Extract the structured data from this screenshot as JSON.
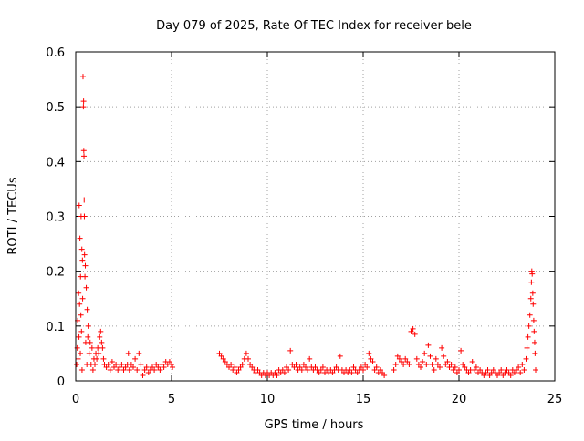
{
  "chart_data": {
    "type": "scatter",
    "title": "Day 079 of 2025, Rate Of TEC Index for receiver bele",
    "xlabel": "GPS time / hours",
    "ylabel": "ROTI / TECUs",
    "xlim": [
      0,
      25
    ],
    "ylim": [
      0,
      0.6
    ],
    "xticks": [
      0,
      5,
      10,
      15,
      20,
      25
    ],
    "xtick_labels": [
      "0",
      "5",
      "10",
      "15",
      "20",
      "25"
    ],
    "yticks": [
      0,
      0.1,
      0.2,
      0.3,
      0.4,
      0.5,
      0.6
    ],
    "ytick_labels": [
      "0",
      "0.1",
      "0.2",
      "0.3",
      "0.4",
      "0.5",
      "0.6"
    ],
    "grid": true,
    "marker": "plus",
    "series": [
      {
        "name": "ROTI",
        "color": "#ff0000",
        "points": [
          [
            0.05,
            0.03
          ],
          [
            0.08,
            0.06
          ],
          [
            0.1,
            0.11
          ],
          [
            0.12,
            0.04
          ],
          [
            0.15,
            0.16
          ],
          [
            0.17,
            0.08
          ],
          [
            0.18,
            0.32
          ],
          [
            0.2,
            0.14
          ],
          [
            0.22,
            0.26
          ],
          [
            0.24,
            0.05
          ],
          [
            0.25,
            0.19
          ],
          [
            0.27,
            0.12
          ],
          [
            0.28,
            0.3
          ],
          [
            0.3,
            0.09
          ],
          [
            0.32,
            0.24
          ],
          [
            0.33,
            0.02
          ],
          [
            0.35,
            0.22
          ],
          [
            0.36,
            0.15
          ],
          [
            0.38,
            0.555
          ],
          [
            0.4,
            0.5
          ],
          [
            0.41,
            0.51
          ],
          [
            0.42,
            0.42
          ],
          [
            0.43,
            0.41
          ],
          [
            0.44,
            0.33
          ],
          [
            0.45,
            0.3
          ],
          [
            0.46,
            0.23
          ],
          [
            0.48,
            0.19
          ],
          [
            0.5,
            0.21
          ],
          [
            0.52,
            0.07
          ],
          [
            0.55,
            0.17
          ],
          [
            0.58,
            0.03
          ],
          [
            0.6,
            0.13
          ],
          [
            0.63,
            0.08
          ],
          [
            0.65,
            0.1
          ],
          [
            0.7,
            0.05
          ],
          [
            0.75,
            0.07
          ],
          [
            0.8,
            0.03
          ],
          [
            0.85,
            0.06
          ],
          [
            0.9,
            0.02
          ],
          [
            0.95,
            0.04
          ],
          [
            1.0,
            0.03
          ],
          [
            1.05,
            0.05
          ],
          [
            1.1,
            0.04
          ],
          [
            1.15,
            0.06
          ],
          [
            1.2,
            0.05
          ],
          [
            1.25,
            0.08
          ],
          [
            1.3,
            0.09
          ],
          [
            1.35,
            0.07
          ],
          [
            1.4,
            0.06
          ],
          [
            1.45,
            0.04
          ],
          [
            1.5,
            0.03
          ],
          [
            1.6,
            0.025
          ],
          [
            1.7,
            0.03
          ],
          [
            1.8,
            0.02
          ],
          [
            1.9,
            0.035
          ],
          [
            2.0,
            0.025
          ],
          [
            2.1,
            0.03
          ],
          [
            2.2,
            0.02
          ],
          [
            2.3,
            0.025
          ],
          [
            2.4,
            0.03
          ],
          [
            2.5,
            0.02
          ],
          [
            2.6,
            0.025
          ],
          [
            2.7,
            0.03
          ],
          [
            2.75,
            0.05
          ],
          [
            2.8,
            0.02
          ],
          [
            2.9,
            0.03
          ],
          [
            3.0,
            0.025
          ],
          [
            3.1,
            0.04
          ],
          [
            3.2,
            0.02
          ],
          [
            3.3,
            0.05
          ],
          [
            3.4,
            0.03
          ],
          [
            3.5,
            0.01
          ],
          [
            3.6,
            0.02
          ],
          [
            3.7,
            0.025
          ],
          [
            3.8,
            0.015
          ],
          [
            3.9,
            0.02
          ],
          [
            4.0,
            0.025
          ],
          [
            4.1,
            0.02
          ],
          [
            4.2,
            0.03
          ],
          [
            4.3,
            0.025
          ],
          [
            4.4,
            0.02
          ],
          [
            4.5,
            0.03
          ],
          [
            4.6,
            0.025
          ],
          [
            4.7,
            0.035
          ],
          [
            4.8,
            0.03
          ],
          [
            4.9,
            0.035
          ],
          [
            5.0,
            0.03
          ],
          [
            5.05,
            0.025
          ],
          [
            7.5,
            0.05
          ],
          [
            7.6,
            0.045
          ],
          [
            7.7,
            0.04
          ],
          [
            7.8,
            0.035
          ],
          [
            7.9,
            0.03
          ],
          [
            8.0,
            0.025
          ],
          [
            8.1,
            0.03
          ],
          [
            8.2,
            0.02
          ],
          [
            8.3,
            0.025
          ],
          [
            8.4,
            0.015
          ],
          [
            8.5,
            0.02
          ],
          [
            8.6,
            0.025
          ],
          [
            8.7,
            0.03
          ],
          [
            8.8,
            0.04
          ],
          [
            8.9,
            0.05
          ],
          [
            9.0,
            0.04
          ],
          [
            9.1,
            0.03
          ],
          [
            9.2,
            0.025
          ],
          [
            9.3,
            0.02
          ],
          [
            9.4,
            0.015
          ],
          [
            9.5,
            0.02
          ],
          [
            9.6,
            0.015
          ],
          [
            9.7,
            0.01
          ],
          [
            9.8,
            0.015
          ],
          [
            9.9,
            0.01
          ],
          [
            10.0,
            0.015
          ],
          [
            10.1,
            0.01
          ],
          [
            10.2,
            0.015
          ],
          [
            10.3,
            0.01
          ],
          [
            10.4,
            0.015
          ],
          [
            10.5,
            0.01
          ],
          [
            10.6,
            0.02
          ],
          [
            10.7,
            0.015
          ],
          [
            10.8,
            0.02
          ],
          [
            10.9,
            0.015
          ],
          [
            11.0,
            0.025
          ],
          [
            11.1,
            0.02
          ],
          [
            11.2,
            0.055
          ],
          [
            11.3,
            0.03
          ],
          [
            11.4,
            0.025
          ],
          [
            11.5,
            0.03
          ],
          [
            11.6,
            0.02
          ],
          [
            11.7,
            0.025
          ],
          [
            11.8,
            0.02
          ],
          [
            11.9,
            0.03
          ],
          [
            12.0,
            0.025
          ],
          [
            12.1,
            0.02
          ],
          [
            12.2,
            0.04
          ],
          [
            12.3,
            0.025
          ],
          [
            12.4,
            0.02
          ],
          [
            12.5,
            0.025
          ],
          [
            12.6,
            0.02
          ],
          [
            12.7,
            0.015
          ],
          [
            12.8,
            0.02
          ],
          [
            12.9,
            0.025
          ],
          [
            13.0,
            0.015
          ],
          [
            13.1,
            0.02
          ],
          [
            13.2,
            0.015
          ],
          [
            13.3,
            0.02
          ],
          [
            13.4,
            0.015
          ],
          [
            13.5,
            0.02
          ],
          [
            13.6,
            0.025
          ],
          [
            13.7,
            0.02
          ],
          [
            13.8,
            0.045
          ],
          [
            13.9,
            0.02
          ],
          [
            14.0,
            0.015
          ],
          [
            14.1,
            0.02
          ],
          [
            14.2,
            0.015
          ],
          [
            14.3,
            0.02
          ],
          [
            14.4,
            0.015
          ],
          [
            14.5,
            0.025
          ],
          [
            14.6,
            0.02
          ],
          [
            14.7,
            0.015
          ],
          [
            14.8,
            0.02
          ],
          [
            14.9,
            0.025
          ],
          [
            15.0,
            0.02
          ],
          [
            15.1,
            0.03
          ],
          [
            15.2,
            0.025
          ],
          [
            15.3,
            0.05
          ],
          [
            15.4,
            0.04
          ],
          [
            15.5,
            0.035
          ],
          [
            15.6,
            0.02
          ],
          [
            15.7,
            0.025
          ],
          [
            15.8,
            0.015
          ],
          [
            15.9,
            0.02
          ],
          [
            16.0,
            0.015
          ],
          [
            16.1,
            0.01
          ],
          [
            16.6,
            0.02
          ],
          [
            16.7,
            0.03
          ],
          [
            16.8,
            0.045
          ],
          [
            16.9,
            0.04
          ],
          [
            17.0,
            0.035
          ],
          [
            17.1,
            0.03
          ],
          [
            17.2,
            0.04
          ],
          [
            17.3,
            0.035
          ],
          [
            17.4,
            0.03
          ],
          [
            17.5,
            0.09
          ],
          [
            17.6,
            0.095
          ],
          [
            17.7,
            0.085
          ],
          [
            17.8,
            0.04
          ],
          [
            17.9,
            0.03
          ],
          [
            18.0,
            0.025
          ],
          [
            18.1,
            0.035
          ],
          [
            18.2,
            0.05
          ],
          [
            18.3,
            0.03
          ],
          [
            18.4,
            0.065
          ],
          [
            18.5,
            0.045
          ],
          [
            18.6,
            0.03
          ],
          [
            18.7,
            0.02
          ],
          [
            18.8,
            0.04
          ],
          [
            18.9,
            0.03
          ],
          [
            19.0,
            0.025
          ],
          [
            19.1,
            0.06
          ],
          [
            19.2,
            0.045
          ],
          [
            19.3,
            0.03
          ],
          [
            19.4,
            0.035
          ],
          [
            19.5,
            0.025
          ],
          [
            19.6,
            0.03
          ],
          [
            19.7,
            0.02
          ],
          [
            19.8,
            0.025
          ],
          [
            19.9,
            0.015
          ],
          [
            20.0,
            0.02
          ],
          [
            20.1,
            0.055
          ],
          [
            20.2,
            0.03
          ],
          [
            20.3,
            0.025
          ],
          [
            20.4,
            0.02
          ],
          [
            20.5,
            0.015
          ],
          [
            20.6,
            0.02
          ],
          [
            20.7,
            0.035
          ],
          [
            20.8,
            0.02
          ],
          [
            20.9,
            0.025
          ],
          [
            21.0,
            0.015
          ],
          [
            21.1,
            0.02
          ],
          [
            21.2,
            0.015
          ],
          [
            21.3,
            0.01
          ],
          [
            21.4,
            0.015
          ],
          [
            21.5,
            0.02
          ],
          [
            21.6,
            0.01
          ],
          [
            21.7,
            0.015
          ],
          [
            21.8,
            0.02
          ],
          [
            21.9,
            0.015
          ],
          [
            22.0,
            0.01
          ],
          [
            22.1,
            0.015
          ],
          [
            22.2,
            0.02
          ],
          [
            22.3,
            0.01
          ],
          [
            22.4,
            0.015
          ],
          [
            22.5,
            0.02
          ],
          [
            22.6,
            0.015
          ],
          [
            22.7,
            0.01
          ],
          [
            22.8,
            0.02
          ],
          [
            22.9,
            0.015
          ],
          [
            23.0,
            0.02
          ],
          [
            23.1,
            0.025
          ],
          [
            23.2,
            0.015
          ],
          [
            23.3,
            0.03
          ],
          [
            23.4,
            0.02
          ],
          [
            23.5,
            0.04
          ],
          [
            23.55,
            0.06
          ],
          [
            23.6,
            0.08
          ],
          [
            23.65,
            0.1
          ],
          [
            23.7,
            0.12
          ],
          [
            23.75,
            0.15
          ],
          [
            23.78,
            0.18
          ],
          [
            23.8,
            0.2
          ],
          [
            23.82,
            0.195
          ],
          [
            23.85,
            0.16
          ],
          [
            23.87,
            0.14
          ],
          [
            23.9,
            0.11
          ],
          [
            23.92,
            0.09
          ],
          [
            23.95,
            0.07
          ],
          [
            23.97,
            0.05
          ],
          [
            24.0,
            0.02
          ]
        ]
      }
    ]
  }
}
